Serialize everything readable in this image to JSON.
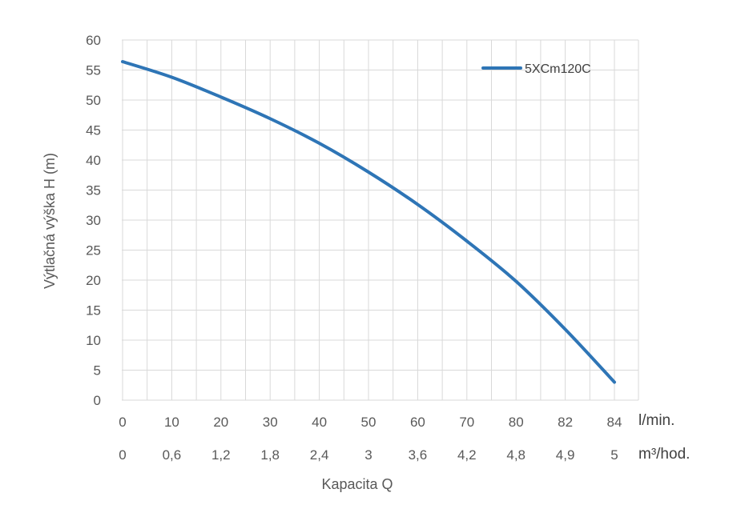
{
  "chart_data": {
    "type": "line",
    "ylabel": "Výtlačná výška H (m)",
    "xlabel": "Kapacita Q",
    "ylim": [
      0,
      60
    ],
    "y_ticks": [
      "0",
      "5",
      "10",
      "15",
      "20",
      "25",
      "30",
      "35",
      "40",
      "45",
      "50",
      "55",
      "60"
    ],
    "x_tick_positions": 11,
    "x_ticks_lmin": [
      "0",
      "10",
      "20",
      "30",
      "40",
      "50",
      "60",
      "70",
      "80",
      "82",
      "84"
    ],
    "x_ticks_m3h": [
      "0",
      "0,6",
      "1,2",
      "1,8",
      "2,4",
      "3",
      "3,6",
      "4,2",
      "4,8",
      "4,9",
      "5"
    ],
    "x_unit_lmin": "l/min.",
    "x_unit_m3h": "m³/hod.",
    "grid": true,
    "legend_position": "top-right",
    "series": [
      {
        "name": "5XCm120C",
        "color": "#2e75b6",
        "x_tick_index": [
          0,
          1,
          2,
          3,
          4,
          5,
          6,
          7,
          8,
          9,
          10
        ],
        "values": [
          56.4,
          53.8,
          50.5,
          46.9,
          42.8,
          38.0,
          32.6,
          26.5,
          19.8,
          11.8,
          3.0
        ]
      }
    ]
  }
}
